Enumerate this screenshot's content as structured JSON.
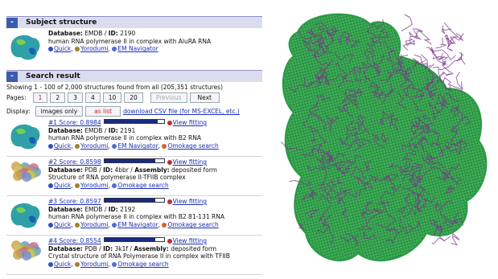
{
  "subject": {
    "toggle": "-",
    "title": "Subject structure",
    "entry": {
      "database_label": "Database:",
      "database": "EMDB",
      "sep": "/",
      "id_label": "ID:",
      "id": "2190",
      "description": "human RNA polymerase II in complex with AluRA RNA",
      "links": [
        "Quick",
        "Yorodumi",
        "EM Navigator"
      ]
    }
  },
  "search": {
    "toggle": "-",
    "title": "Search result",
    "showing": "Showing 1 - 100 of 2,000 structures found from all (205,351 structures)",
    "pages_label": "Pages:",
    "pages": [
      "1",
      "2",
      "3",
      "4",
      "10",
      "20"
    ],
    "previous": "Previous",
    "next": "Next",
    "display_label": "Display:",
    "images_only": "images only",
    "as_list": "as list",
    "download": "download CSV file (for MS-EXCEL, etc.)",
    "results": [
      {
        "rank": "#1",
        "score_label": "Score:",
        "score": 0.8984,
        "view": "View fitting",
        "database_label": "Database:",
        "database": "EMDB",
        "sep": "/",
        "id_label": "ID:",
        "id": "2191",
        "description": "human RNA polymerase II in complex with B2 RNA",
        "links": [
          "Quick",
          "Yorodumi",
          "EM Navigator",
          "Omokage search"
        ]
      },
      {
        "rank": "#2",
        "score_label": "Score:",
        "score": 0.8598,
        "view": "View fitting",
        "database_label": "Database:",
        "database": "PDB",
        "sep": "/",
        "id_label": "ID:",
        "id": "4bbr",
        "assembly_sep": "/",
        "assembly_label": "Assembly:",
        "assembly": "deposited form",
        "description": "Structure of RNA polymerase II-TFIIB complex",
        "links": [
          "Quick",
          "Yorodumi",
          "Omokage search"
        ]
      },
      {
        "rank": "#3",
        "score_label": "Score:",
        "score": 0.8597,
        "view": "View fitting",
        "database_label": "Database:",
        "database": "EMDB",
        "sep": "/",
        "id_label": "ID:",
        "id": "2192",
        "description": "human RNA polymerase II in complex with B2 81-131 RNA",
        "links": [
          "Quick",
          "Yorodumi",
          "EM Navigator",
          "Omokage search"
        ]
      },
      {
        "rank": "#4",
        "score_label": "Score:",
        "score": 0.8554,
        "view": "View fitting",
        "database_label": "Database:",
        "database": "PDB",
        "sep": "/",
        "id_label": "ID:",
        "id": "3k1f",
        "assembly_sep": "/",
        "assembly_label": "Assembly:",
        "assembly": "deposited form",
        "description": "Crystal structure of RNA Polymerase II in complex with TFIIB",
        "links": [
          "Quick",
          "Yorodumi",
          "Omokage search"
        ]
      }
    ]
  }
}
